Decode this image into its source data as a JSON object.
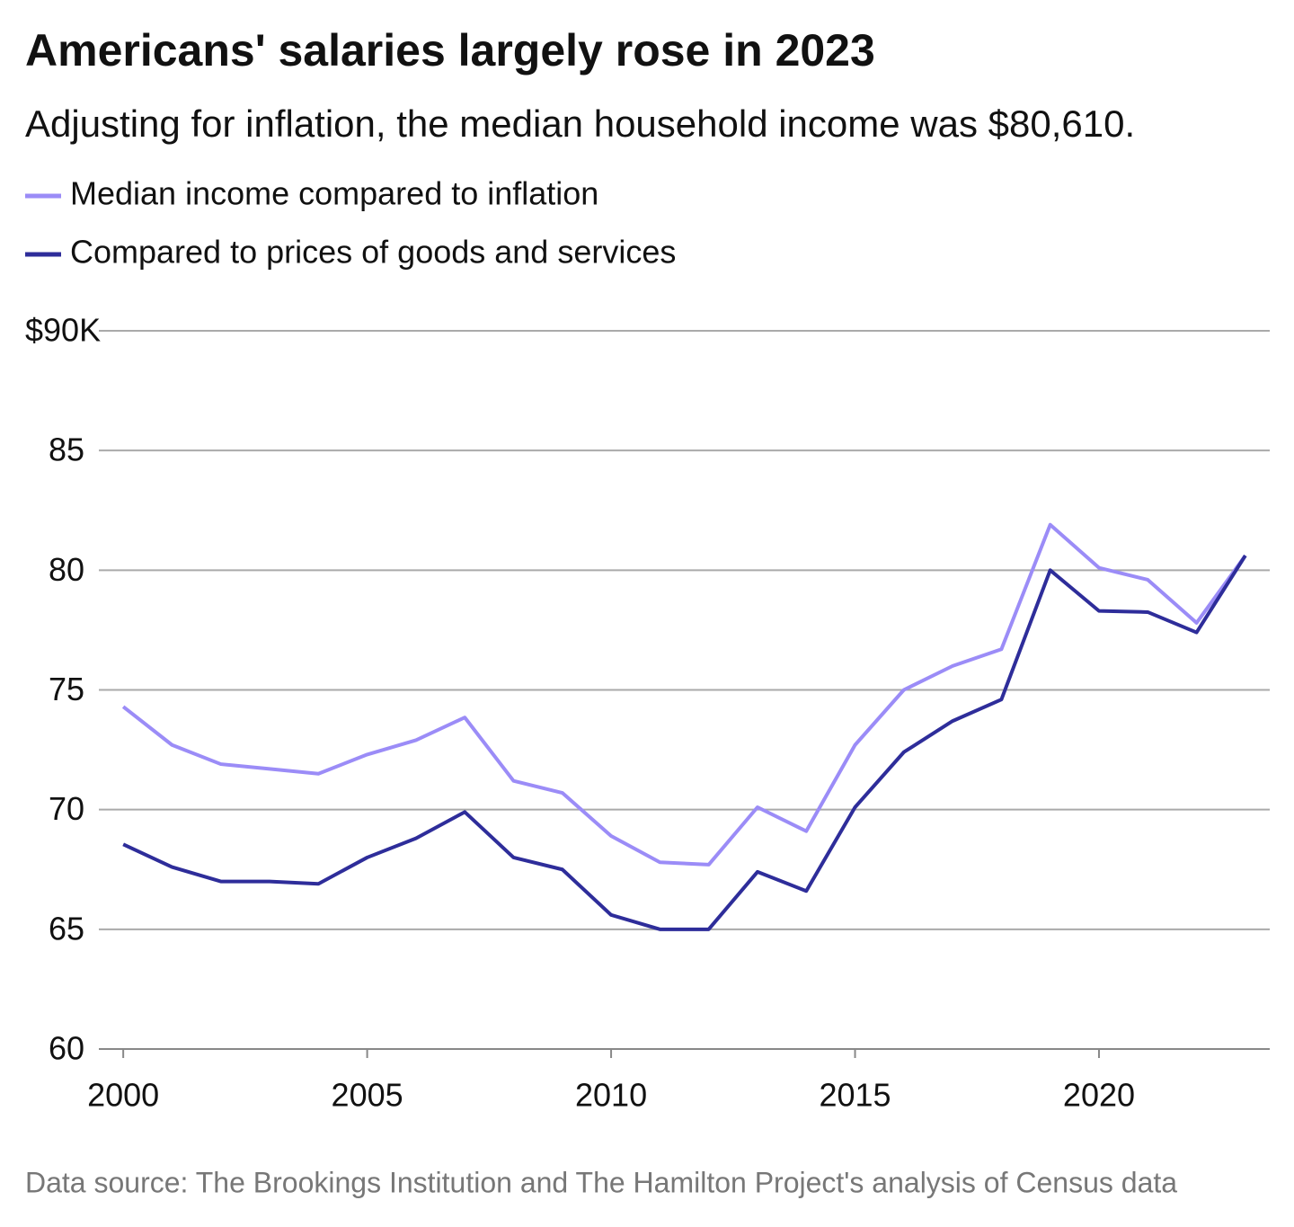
{
  "chart_data": {
    "type": "line",
    "title": "Americans' salaries largely rose in 2023",
    "subtitle": "Adjusting for inflation, the median household income was $80,610.",
    "source": "Data source: The Brookings Institution and The Hamilton Project's analysis of Census data",
    "x": [
      2000,
      2001,
      2002,
      2003,
      2004,
      2005,
      2006,
      2007,
      2008,
      2009,
      2010,
      2011,
      2012,
      2013,
      2014,
      2015,
      2016,
      2017,
      2018,
      2019,
      2020,
      2021,
      2022,
      2023
    ],
    "series": [
      {
        "name": "Median income compared to inflation",
        "color": "#9b8cf7",
        "values": [
          74.3,
          72.7,
          71.9,
          71.7,
          71.5,
          72.3,
          72.9,
          73.85,
          71.2,
          70.7,
          68.9,
          67.8,
          67.7,
          70.1,
          69.1,
          72.7,
          75.0,
          76.0,
          76.7,
          81.9,
          80.1,
          79.6,
          77.8,
          80.61
        ]
      },
      {
        "name": "Compared to prices of goods and services",
        "color": "#2e2d9a",
        "values": [
          68.55,
          67.6,
          67.0,
          67.0,
          66.9,
          68.0,
          68.8,
          69.9,
          68.0,
          67.5,
          65.6,
          65.0,
          65.0,
          67.4,
          66.6,
          70.1,
          72.4,
          73.7,
          74.6,
          80.0,
          78.3,
          78.25,
          77.4,
          80.61
        ]
      }
    ],
    "xlim": [
      1999.5,
      2023.5
    ],
    "xticks": [
      2000,
      2005,
      2010,
      2015,
      2020
    ],
    "ylim": [
      60,
      90
    ],
    "yticks": [
      60,
      65,
      70,
      75,
      80,
      85,
      {
        "value": 90,
        "label": "$90K"
      }
    ],
    "grid": true
  }
}
